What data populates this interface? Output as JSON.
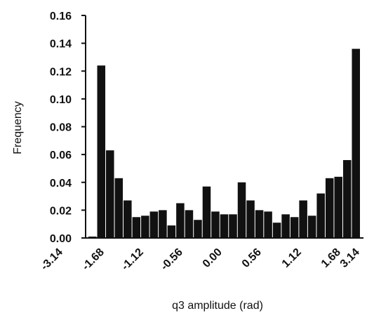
{
  "chart_data": {
    "type": "bar",
    "xlabel": "q3 amplitude (rad)",
    "ylabel": "Frequency",
    "ylim": [
      0,
      0.16
    ],
    "yticks": [
      "0.00",
      "0.02",
      "0.04",
      "0.06",
      "0.08",
      "0.10",
      "0.12",
      "0.14",
      "0.16"
    ],
    "xticks": [
      "-3.14",
      "-1.68",
      "-1.12",
      "-0.56",
      "0.00",
      "0.56",
      "1.12",
      "1.68",
      "3.14"
    ],
    "values": [
      0.001,
      0.124,
      0.063,
      0.043,
      0.027,
      0.015,
      0.016,
      0.019,
      0.02,
      0.009,
      0.025,
      0.02,
      0.013,
      0.037,
      0.019,
      0.017,
      0.017,
      0.04,
      0.027,
      0.02,
      0.019,
      0.011,
      0.017,
      0.015,
      0.027,
      0.016,
      0.032,
      0.043,
      0.044,
      0.056,
      0.136
    ],
    "bar_color": "#111111",
    "grid": false,
    "legend": "none"
  }
}
